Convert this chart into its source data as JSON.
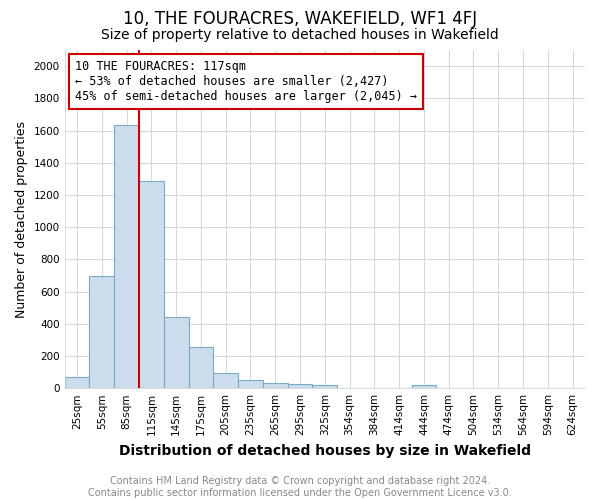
{
  "title": "10, THE FOURACRES, WAKEFIELD, WF1 4FJ",
  "subtitle": "Size of property relative to detached houses in Wakefield",
  "xlabel": "Distribution of detached houses by size in Wakefield",
  "ylabel": "Number of detached properties",
  "bin_labels": [
    "25sqm",
    "55sqm",
    "85sqm",
    "115sqm",
    "145sqm",
    "175sqm",
    "205sqm",
    "235sqm",
    "265sqm",
    "295sqm",
    "325sqm",
    "354sqm",
    "384sqm",
    "414sqm",
    "444sqm",
    "474sqm",
    "504sqm",
    "534sqm",
    "564sqm",
    "594sqm",
    "624sqm"
  ],
  "bar_values": [
    68,
    695,
    1635,
    1285,
    440,
    253,
    95,
    52,
    32,
    27,
    18,
    0,
    0,
    0,
    22,
    0,
    0,
    0,
    0,
    0,
    0
  ],
  "bar_color": "#ccdded",
  "bar_edge_color": "#7aaac8",
  "annotation_box_text_line1": "10 THE FOURACRES: 117sqm",
  "annotation_box_text_line2": "← 53% of detached houses are smaller (2,427)",
  "annotation_box_text_line3": "45% of semi-detached houses are larger (2,045) →",
  "annotation_box_color": "#ffffff",
  "annotation_box_edge_color": "#cc0000",
  "red_line_color": "#cc0000",
  "ylim": [
    0,
    2100
  ],
  "yticks": [
    0,
    200,
    400,
    600,
    800,
    1000,
    1200,
    1400,
    1600,
    1800,
    2000
  ],
  "red_line_index": 3,
  "plot_bg_color": "#ffffff",
  "title_fontsize": 12,
  "subtitle_fontsize": 10,
  "xlabel_fontsize": 10,
  "ylabel_fontsize": 9,
  "tick_fontsize": 7.5,
  "annotation_fontsize": 8.5,
  "footer_fontsize": 7,
  "footer_text": "Contains HM Land Registry data © Crown copyright and database right 2024.\nContains public sector information licensed under the Open Government Licence v3.0."
}
